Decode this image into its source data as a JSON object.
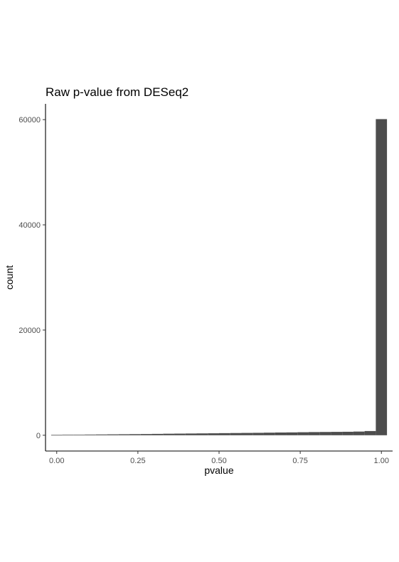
{
  "chart_data": {
    "type": "bar",
    "title": "Raw p-value from DESeq2",
    "xlabel": "pvalue",
    "ylabel": "count",
    "x_ticks": [
      "0.00",
      "0.25",
      "0.50",
      "0.75",
      "1.00"
    ],
    "y_ticks": [
      "0",
      "20000",
      "40000",
      "60000"
    ],
    "xlim": [
      -0.0345,
      1.0345
    ],
    "ylim": [
      -3000,
      63000
    ],
    "grid": false,
    "legend": "none",
    "bar_color": "#4d4d4d",
    "bins": [
      {
        "x_min": -0.0172,
        "x_max": 0.0172,
        "count": 60
      },
      {
        "x_min": 0.0172,
        "x_max": 0.0517,
        "count": 90
      },
      {
        "x_min": 0.0517,
        "x_max": 0.0862,
        "count": 110
      },
      {
        "x_min": 0.0862,
        "x_max": 0.1207,
        "count": 130
      },
      {
        "x_min": 0.1207,
        "x_max": 0.1552,
        "count": 150
      },
      {
        "x_min": 0.1552,
        "x_max": 0.1897,
        "count": 170
      },
      {
        "x_min": 0.1897,
        "x_max": 0.2241,
        "count": 190
      },
      {
        "x_min": 0.2241,
        "x_max": 0.2586,
        "count": 210
      },
      {
        "x_min": 0.2586,
        "x_max": 0.2931,
        "count": 230
      },
      {
        "x_min": 0.2931,
        "x_max": 0.3276,
        "count": 260
      },
      {
        "x_min": 0.3276,
        "x_max": 0.3621,
        "count": 290
      },
      {
        "x_min": 0.3621,
        "x_max": 0.3966,
        "count": 310
      },
      {
        "x_min": 0.3966,
        "x_max": 0.431,
        "count": 330
      },
      {
        "x_min": 0.431,
        "x_max": 0.4655,
        "count": 350
      },
      {
        "x_min": 0.4655,
        "x_max": 0.5,
        "count": 370
      },
      {
        "x_min": 0.5,
        "x_max": 0.5345,
        "count": 400
      },
      {
        "x_min": 0.5345,
        "x_max": 0.569,
        "count": 420
      },
      {
        "x_min": 0.569,
        "x_max": 0.6034,
        "count": 440
      },
      {
        "x_min": 0.6034,
        "x_max": 0.6379,
        "count": 460
      },
      {
        "x_min": 0.6379,
        "x_max": 0.6724,
        "count": 490
      },
      {
        "x_min": 0.6724,
        "x_max": 0.7069,
        "count": 520
      },
      {
        "x_min": 0.7069,
        "x_max": 0.7414,
        "count": 540
      },
      {
        "x_min": 0.7414,
        "x_max": 0.7759,
        "count": 570
      },
      {
        "x_min": 0.7759,
        "x_max": 0.8103,
        "count": 600
      },
      {
        "x_min": 0.8103,
        "x_max": 0.8448,
        "count": 620
      },
      {
        "x_min": 0.8448,
        "x_max": 0.8793,
        "count": 640
      },
      {
        "x_min": 0.8793,
        "x_max": 0.9138,
        "count": 660
      },
      {
        "x_min": 0.9138,
        "x_max": 0.9483,
        "count": 700
      },
      {
        "x_min": 0.9483,
        "x_max": 0.9828,
        "count": 800
      },
      {
        "x_min": 0.9828,
        "x_max": 1.0172,
        "count": 60100
      }
    ]
  }
}
